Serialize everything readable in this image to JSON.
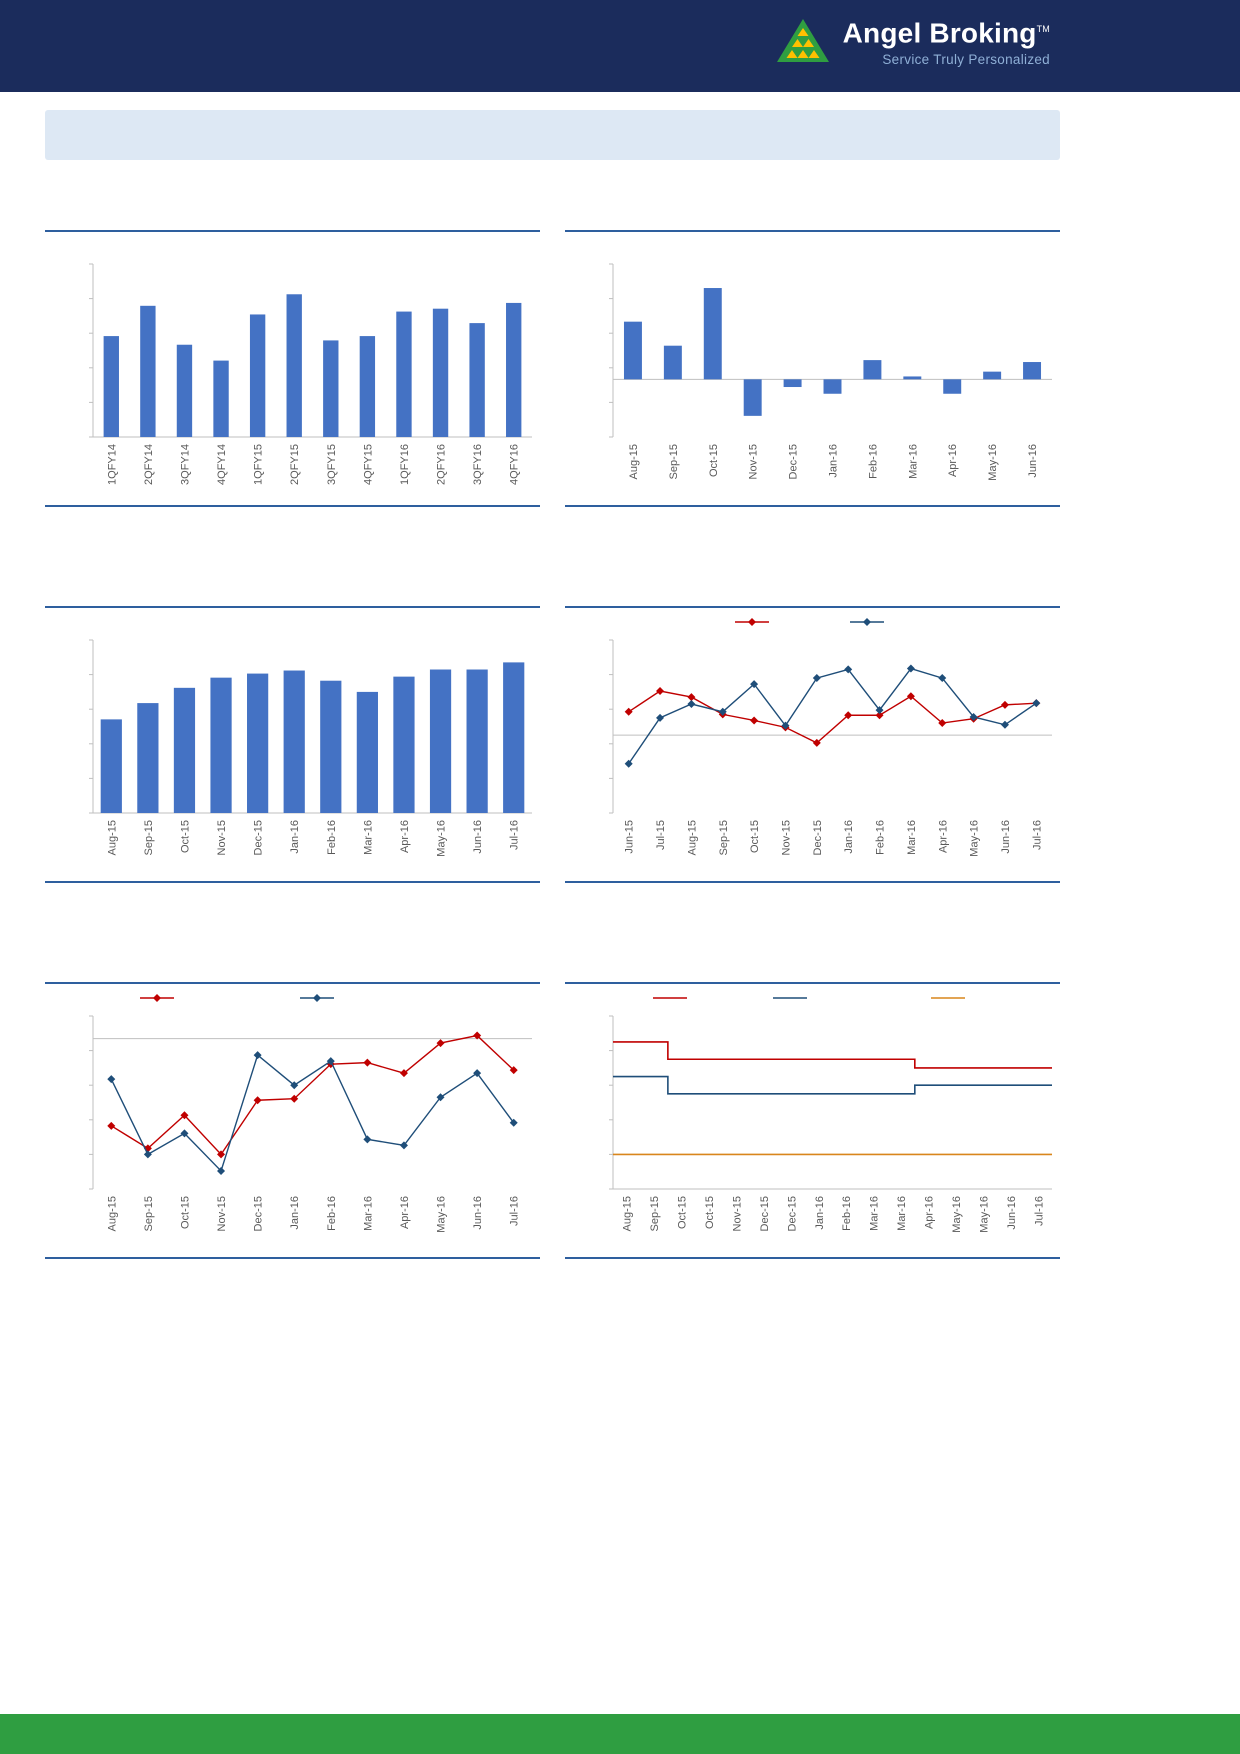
{
  "header": {
    "brand": "Angel Broking",
    "tm": "TM",
    "tagline": "Service Truly Personalized"
  },
  "colors": {
    "header_bg": "#1b2c5c",
    "accent_line": "#2e5f9e",
    "banner_bg": "#dde8f4",
    "footer_bg": "#2f9e41",
    "logo_green": "#2f9e41",
    "logo_yellow": "#ffc000",
    "bar_blue": "#4472c4",
    "line_red": "#c00000",
    "line_blue": "#1f4e79",
    "line_orange": "#d9861c",
    "axis_gray": "#bfbfbf",
    "label_gray": "#595959"
  },
  "chart_data": [
    {
      "type": "bar",
      "title": "",
      "categories": [
        "1QFY14",
        "2QFY14",
        "3QFY14",
        "4QFY14",
        "1QFY15",
        "2QFY15",
        "3QFY15",
        "4QFY15",
        "1QFY16",
        "2QFY16",
        "3QFY16",
        "4QFY16"
      ],
      "values": [
        70,
        91,
        64,
        53,
        85,
        99,
        67,
        70,
        87,
        89,
        79,
        93
      ],
      "ylim": [
        0,
        120
      ],
      "bar_frac": 0.42,
      "color": "bar_blue"
    },
    {
      "type": "bar",
      "title": "",
      "categories": [
        "Aug-15",
        "Sep-15",
        "Oct-15",
        "Nov-15",
        "Dec-15",
        "Jan-16",
        "Feb-16",
        "Mar-16",
        "Apr-16",
        "May-16",
        "Jun-16"
      ],
      "values": [
        6.0,
        3.5,
        9.5,
        -3.8,
        -0.8,
        -1.5,
        2.0,
        0.3,
        -1.5,
        0.8,
        1.8
      ],
      "ylim": [
        -6,
        12
      ],
      "bar_frac": 0.45,
      "color": "bar_blue"
    },
    {
      "type": "bar",
      "title": "",
      "categories": [
        "Aug-15",
        "Sep-15",
        "Oct-15",
        "Nov-15",
        "Dec-15",
        "Jan-16",
        "Feb-16",
        "Mar-16",
        "Apr-16",
        "May-16",
        "Jun-16",
        "Jul-16"
      ],
      "values": [
        9.2,
        10.8,
        12.3,
        13.3,
        13.7,
        14.0,
        13.0,
        11.9,
        13.4,
        14.1,
        14.1,
        14.8
      ],
      "ylim": [
        0,
        17
      ],
      "bar_frac": 0.58,
      "color": "bar_blue"
    },
    {
      "type": "line",
      "title": "",
      "categories": [
        "Jun-15",
        "Jul-15",
        "Aug-15",
        "Sep-15",
        "Oct-15",
        "Nov-15",
        "Dec-15",
        "Jan-16",
        "Feb-16",
        "Mar-16",
        "Apr-16",
        "May-16",
        "Jun-16",
        "Jul-16"
      ],
      "series": [
        {
          "name": "",
          "color": "line_red",
          "marker": "diamond",
          "values": [
            2.7,
            5.1,
            4.4,
            2.4,
            1.7,
            0.9,
            -0.9,
            2.3,
            2.3,
            4.5,
            1.4,
            1.9,
            3.5,
            3.7
          ]
        },
        {
          "name": "",
          "color": "line_blue",
          "marker": "diamond",
          "values": [
            -3.3,
            2.0,
            3.6,
            2.7,
            5.9,
            1.1,
            6.6,
            7.6,
            2.9,
            7.7,
            6.6,
            2.1,
            1.2,
            3.7
          ]
        }
      ],
      "ylim": [
        -9,
        11
      ],
      "legend": {
        "y": 14,
        "xs": [
          170,
          285
        ]
      }
    },
    {
      "type": "line",
      "title": "",
      "categories": [
        "Aug-15",
        "Sep-15",
        "Oct-15",
        "Nov-15",
        "Dec-15",
        "Jan-16",
        "Feb-16",
        "Mar-16",
        "Apr-16",
        "May-16",
        "Jun-16",
        "Jul-16"
      ],
      "series": [
        {
          "name": "",
          "color": "line_red",
          "marker": "diamond",
          "values": [
            -5.8,
            -7.3,
            -5.1,
            -7.7,
            -4.1,
            -4.0,
            -1.7,
            -1.6,
            -2.3,
            -0.3,
            0.2,
            -2.1
          ]
        },
        {
          "name": "",
          "color": "line_blue",
          "marker": "diamond",
          "values": [
            -2.7,
            -7.7,
            -6.3,
            -8.8,
            -1.1,
            -3.1,
            -1.5,
            -6.7,
            -7.1,
            -3.9,
            -2.3,
            -5.6
          ]
        }
      ],
      "ylim": [
        -10,
        1.5
      ],
      "legend": {
        "y": 14,
        "xs": [
          95,
          255
        ]
      }
    },
    {
      "type": "step",
      "title": "",
      "categories": [
        "Aug-15",
        "Sep-15",
        "Oct-15",
        "Oct-15",
        "Nov-15",
        "Dec-15",
        "Dec-15",
        "Jan-16",
        "Feb-16",
        "Mar-16",
        "Mar-16",
        "Apr-16",
        "May-16",
        "May-16",
        "Jun-16",
        "Jul-16"
      ],
      "series": [
        {
          "name": "",
          "color": "line_red",
          "values": [
            7.25,
            7.25,
            6.75,
            6.75,
            6.75,
            6.75,
            6.75,
            6.75,
            6.75,
            6.75,
            6.75,
            6.5,
            6.5,
            6.5,
            6.5,
            6.5
          ]
        },
        {
          "name": "",
          "color": "line_blue",
          "values": [
            6.25,
            6.25,
            5.75,
            5.75,
            5.75,
            5.75,
            5.75,
            5.75,
            5.75,
            5.75,
            5.75,
            6.0,
            6.0,
            6.0,
            6.0,
            6.0
          ]
        },
        {
          "name": "",
          "color": "line_orange",
          "values": [
            4,
            4,
            4,
            4,
            4,
            4,
            4,
            4,
            4,
            4,
            4,
            4,
            4,
            4,
            4,
            4
          ]
        }
      ],
      "ylim": [
        3,
        8
      ],
      "legend": {
        "y": 14,
        "xs": [
          88,
          208,
          366
        ]
      }
    }
  ]
}
